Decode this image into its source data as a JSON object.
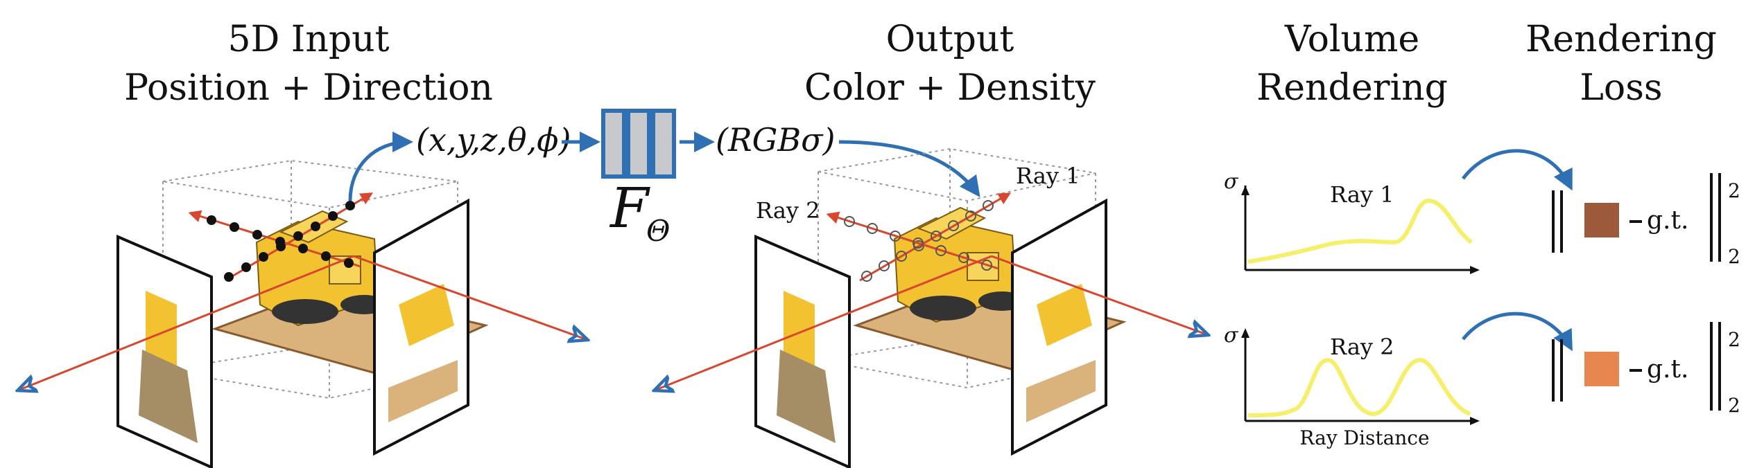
{
  "headers": {
    "input_line1": "5D Input",
    "input_line2": "Position + Direction",
    "output_line1": "Output",
    "output_line2": "Color + Density",
    "volume_line1": "Volume",
    "volume_line2": "Rendering",
    "loss_line1": "Rendering",
    "loss_line2": "Loss"
  },
  "network": {
    "input_tuple": "(x,y,z,θ,ϕ)",
    "output_tuple": "(RGBσ)",
    "function_symbol": "F",
    "function_subscript": "Θ"
  },
  "rays": {
    "ray1_label": "Ray 1",
    "ray2_label": "Ray 2"
  },
  "plots": {
    "y_axis_symbol": "σ",
    "x_axis_label": "Ray Distance",
    "ray1_title": "Ray 1",
    "ray2_title": "Ray 2",
    "curve_color": "#f5ef6a"
  },
  "loss": {
    "gt_label": "g.t.",
    "superscript": "2",
    "subscript": "2",
    "ray1_swatch_color": "#9c5a3a",
    "ray2_swatch_color": "#e8864f"
  },
  "colors": {
    "arrow_blue": "#2f6fb3",
    "ray_red": "#d9462e",
    "network_fill": "#c7c9cc",
    "network_border": "#2f6fb3",
    "bulldozer_yellow": "#f2c230"
  }
}
